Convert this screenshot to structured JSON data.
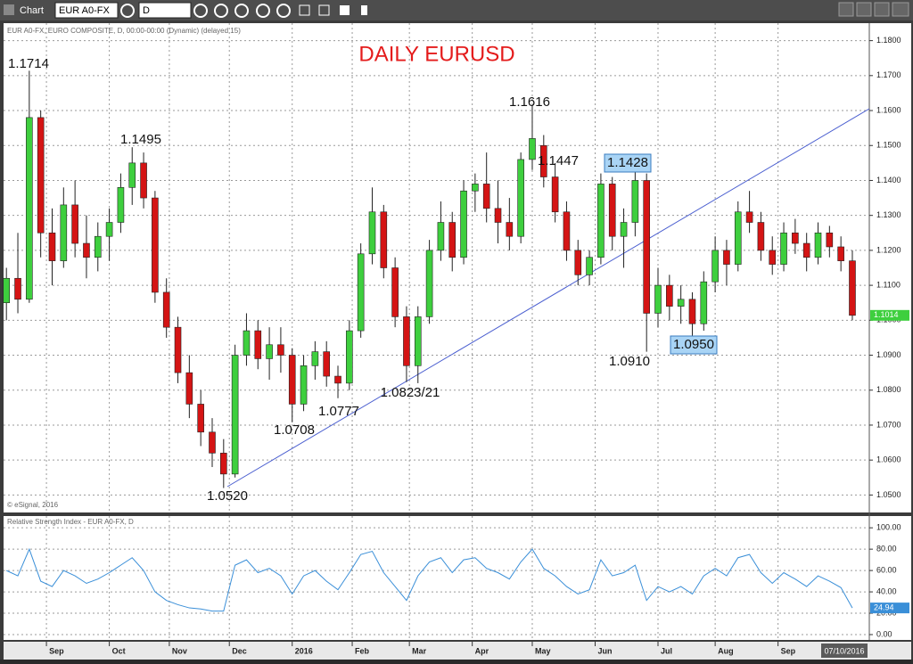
{
  "toolbar": {
    "title": "Chart",
    "symbol": "EUR A0-FX",
    "interval": "D"
  },
  "chart_data": {
    "type": "candlestick",
    "title": "DAILY EURUSD",
    "header": "EUR A0-FX, EURO COMPOSITE, D, 00:00-00:00 (Dynamic) (delayed 15)",
    "footer": "© eSignal, 2016",
    "up_color": "#3ecf3e",
    "down_color": "#d41414",
    "grid": true,
    "xlim": [
      -1,
      301
    ],
    "xticks": [
      {
        "value": 14,
        "label": "Sep"
      },
      {
        "value": 36,
        "label": "Oct"
      },
      {
        "value": 57,
        "label": "Nov"
      },
      {
        "value": 78,
        "label": "Dec"
      },
      {
        "value": 100,
        "label": "2016"
      },
      {
        "value": 121,
        "label": "Feb"
      },
      {
        "value": 141,
        "label": "Mar"
      },
      {
        "value": 163,
        "label": "Apr"
      },
      {
        "value": 184,
        "label": "May"
      },
      {
        "value": 206,
        "label": "Jun"
      },
      {
        "value": 228,
        "label": "Jul"
      },
      {
        "value": 248,
        "label": "Aug"
      },
      {
        "value": 270,
        "label": "Sep"
      }
    ],
    "cursor_date": "07/10/2016",
    "ylim": [
      1.045,
      1.185
    ],
    "yticks": [
      {
        "value": 1.05,
        "label": "1.0500"
      },
      {
        "value": 1.06,
        "label": "1.0600"
      },
      {
        "value": 1.07,
        "label": "1.0700"
      },
      {
        "value": 1.08,
        "label": "1.0800"
      },
      {
        "value": 1.09,
        "label": "1.0900"
      },
      {
        "value": 1.1,
        "label": "1.1000"
      },
      {
        "value": 1.11,
        "label": "1.1100"
      },
      {
        "value": 1.12,
        "label": "1.1200"
      },
      {
        "value": 1.13,
        "label": "1.1300"
      },
      {
        "value": 1.14,
        "label": "1.1400"
      },
      {
        "value": 1.15,
        "label": "1.1500"
      },
      {
        "value": 1.16,
        "label": "1.1600"
      },
      {
        "value": 1.17,
        "label": "1.1700"
      },
      {
        "value": 1.18,
        "label": "1.1800"
      }
    ],
    "annotations": [
      "1.1714",
      "1.1495",
      "1.0520",
      "1.0708",
      "1.0777",
      "1.0823/21",
      "1.1616",
      "1.1447",
      "1.1428",
      "1.0910",
      "1.0950"
    ],
    "candles": {
      "x": [
        0,
        4,
        8,
        12,
        16,
        20,
        24,
        28,
        32,
        36,
        40,
        44,
        48,
        52,
        56,
        60,
        64,
        68,
        72,
        76,
        80,
        84,
        88,
        92,
        96,
        100,
        104,
        108,
        112,
        116,
        120,
        124,
        128,
        132,
        136,
        140,
        144,
        148,
        152,
        156,
        160,
        164,
        168,
        172,
        176,
        180,
        184,
        188,
        192,
        196,
        200,
        204,
        208,
        212,
        216,
        220,
        224,
        228,
        232,
        236,
        240,
        244,
        248,
        252,
        256,
        260,
        264,
        268,
        272,
        276,
        280,
        284,
        288,
        292,
        296
      ],
      "open": [
        1.105,
        1.112,
        1.106,
        1.158,
        1.125,
        1.117,
        1.133,
        1.122,
        1.118,
        1.124,
        1.128,
        1.138,
        1.145,
        1.135,
        1.108,
        1.098,
        1.085,
        1.076,
        1.068,
        1.062,
        1.056,
        1.09,
        1.097,
        1.089,
        1.093,
        1.09,
        1.076,
        1.087,
        1.091,
        1.084,
        1.082,
        1.097,
        1.119,
        1.131,
        1.115,
        1.101,
        1.087,
        1.101,
        1.12,
        1.128,
        1.118,
        1.137,
        1.139,
        1.132,
        1.128,
        1.124,
        1.146,
        1.15,
        1.141,
        1.131,
        1.12,
        1.113,
        1.118,
        1.139,
        1.124,
        1.128,
        1.14,
        1.102,
        1.11,
        1.104,
        1.106,
        1.099,
        1.111,
        1.12,
        1.116,
        1.131,
        1.128,
        1.12,
        1.116,
        1.125,
        1.122,
        1.118,
        1.125,
        1.121,
        1.117
      ],
      "high": [
        1.115,
        1.125,
        1.1714,
        1.16,
        1.132,
        1.138,
        1.14,
        1.13,
        1.128,
        1.132,
        1.142,
        1.1495,
        1.148,
        1.137,
        1.112,
        1.101,
        1.09,
        1.08,
        1.072,
        1.066,
        1.093,
        1.102,
        1.1,
        1.098,
        1.098,
        1.092,
        1.09,
        1.094,
        1.094,
        1.087,
        1.1,
        1.122,
        1.138,
        1.133,
        1.118,
        1.104,
        1.104,
        1.123,
        1.134,
        1.131,
        1.14,
        1.142,
        1.148,
        1.14,
        1.135,
        1.148,
        1.1616,
        1.153,
        1.145,
        1.134,
        1.123,
        1.12,
        1.142,
        1.141,
        1.132,
        1.1428,
        1.142,
        1.115,
        1.113,
        1.11,
        1.108,
        1.114,
        1.124,
        1.123,
        1.134,
        1.137,
        1.131,
        1.124,
        1.128,
        1.129,
        1.125,
        1.128,
        1.127,
        1.124,
        1.12
      ],
      "low": [
        1.1,
        1.102,
        1.105,
        1.118,
        1.11,
        1.115,
        1.118,
        1.112,
        1.114,
        1.117,
        1.125,
        1.133,
        1.132,
        1.105,
        1.095,
        1.082,
        1.072,
        1.064,
        1.058,
        1.052,
        1.055,
        1.087,
        1.086,
        1.083,
        1.085,
        1.0708,
        1.074,
        1.083,
        1.081,
        1.0777,
        1.08,
        1.095,
        1.116,
        1.112,
        1.098,
        1.0823,
        1.082,
        1.099,
        1.117,
        1.114,
        1.116,
        1.131,
        1.128,
        1.122,
        1.12,
        1.122,
        1.143,
        1.138,
        1.128,
        1.117,
        1.11,
        1.11,
        1.116,
        1.12,
        1.115,
        1.124,
        1.091,
        1.098,
        1.1,
        1.099,
        1.095,
        1.097,
        1.108,
        1.11,
        1.114,
        1.125,
        1.117,
        1.113,
        1.114,
        1.119,
        1.114,
        1.116,
        1.118,
        1.114,
        1.1
      ],
      "close": [
        1.112,
        1.106,
        1.158,
        1.125,
        1.117,
        1.133,
        1.122,
        1.118,
        1.124,
        1.128,
        1.138,
        1.145,
        1.135,
        1.108,
        1.098,
        1.085,
        1.076,
        1.068,
        1.062,
        1.056,
        1.09,
        1.097,
        1.089,
        1.093,
        1.09,
        1.076,
        1.087,
        1.091,
        1.084,
        1.082,
        1.097,
        1.119,
        1.131,
        1.115,
        1.101,
        1.087,
        1.101,
        1.12,
        1.128,
        1.118,
        1.137,
        1.139,
        1.132,
        1.128,
        1.124,
        1.146,
        1.152,
        1.141,
        1.131,
        1.12,
        1.113,
        1.118,
        1.139,
        1.124,
        1.128,
        1.14,
        1.102,
        1.11,
        1.104,
        1.106,
        1.099,
        1.111,
        1.12,
        1.116,
        1.131,
        1.128,
        1.12,
        1.116,
        1.125,
        1.122,
        1.118,
        1.125,
        1.121,
        1.117,
        1.1014
      ]
    },
    "rsi": {
      "title": "Relative Strength Index - EUR A0-FX, D",
      "color": "#3a8fd8",
      "ylim": [
        -5,
        111
      ],
      "yticks": [
        {
          "value": 0,
          "label": "0.00"
        },
        {
          "value": 20,
          "label": "20.00"
        },
        {
          "value": 40,
          "label": "40.00"
        },
        {
          "value": 60,
          "label": "60.00"
        },
        {
          "value": 80,
          "label": "80.00"
        },
        {
          "value": 100,
          "label": "100.00"
        }
      ],
      "values": [
        60,
        55,
        80,
        50,
        45,
        60,
        55,
        48,
        52,
        58,
        65,
        72,
        60,
        40,
        32,
        28,
        25,
        24,
        22,
        22,
        65,
        70,
        58,
        62,
        55,
        38,
        55,
        60,
        50,
        42,
        58,
        75,
        78,
        58,
        45,
        32,
        55,
        68,
        72,
        58,
        70,
        72,
        62,
        58,
        52,
        68,
        80,
        62,
        55,
        45,
        38,
        42,
        70,
        55,
        58,
        65,
        32,
        45,
        40,
        45,
        38,
        55,
        62,
        55,
        72,
        75,
        58,
        48,
        58,
        52,
        45,
        55,
        50,
        44,
        24.94
      ]
    }
  }
}
